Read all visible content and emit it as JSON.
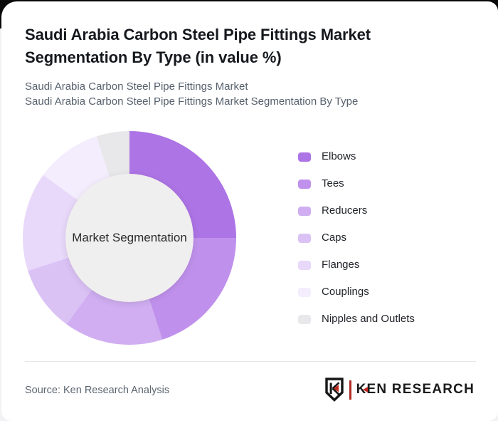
{
  "page": {
    "title_lines": [
      "Saudi Arabia Carbon Steel Pipe Fittings Market",
      "Segmentation By Type (in value %)"
    ],
    "subtitle_lines": [
      "Saudi Arabia Carbon Steel Pipe Fittings Market",
      "Saudi Arabia Carbon Steel Pipe Fittings Market Segmentation By Type"
    ]
  },
  "chart_data": {
    "type": "pie",
    "variant": "donut",
    "title": "Saudi Arabia Carbon Steel Pipe Fittings Market Segmentation By Type (in value %)",
    "center_label": "Market Segmentation",
    "units": "value %",
    "start_angle_deg": 0,
    "direction": "clockwise",
    "legend_position": "right",
    "center_fill": "#f0efef",
    "segments": [
      {
        "label": "Elbows",
        "value": 25,
        "color": "#ad74e5"
      },
      {
        "label": "Tees",
        "value": 20,
        "color": "#c091ec"
      },
      {
        "label": "Reducers",
        "value": 15,
        "color": "#d0aef1"
      },
      {
        "label": "Caps",
        "value": 10,
        "color": "#dbc2f5"
      },
      {
        "label": "Flanges",
        "value": 15,
        "color": "#e8d8fa"
      },
      {
        "label": "Couplings",
        "value": 10,
        "color": "#f3edfd"
      },
      {
        "label": "Nipples and Outlets",
        "value": 5,
        "color": "#e8e7e9"
      }
    ]
  },
  "footer": {
    "source": "Source: Ken Research Analysis",
    "logo": {
      "emblem_letter": "K",
      "wordmark": "KEN RESEARCH",
      "accent_red": "#c0291f",
      "ink": "#1b1b1b"
    }
  }
}
